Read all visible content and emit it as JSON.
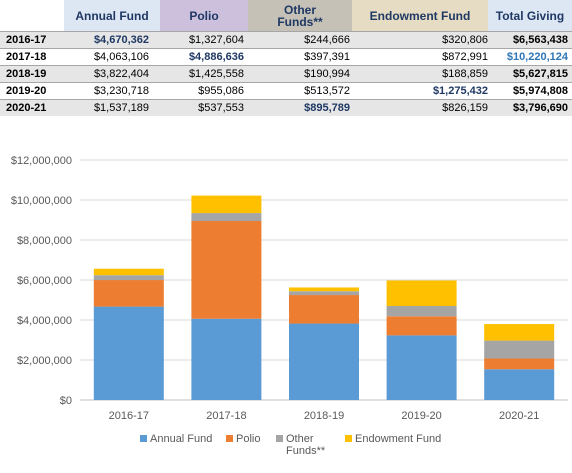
{
  "table": {
    "headers": {
      "annual": "Annual Fund",
      "polio": "Polio",
      "other_line1": "Other",
      "other_line2": "Funds**",
      "endowment": "Endowment Fund",
      "total": "Total Giving"
    },
    "header_colors": {
      "annual": "#dde7f4",
      "polio": "#ccc0dd",
      "other": "#c6c1b7",
      "endowment": "#e6dcc3",
      "total": "#dde7f4"
    },
    "rows": [
      {
        "year": "2016-17",
        "annual": "$4,670,362",
        "polio": "$1,327,604",
        "other": "$244,666",
        "endowment": "$320,806",
        "total": "$6,563,438",
        "hl": "annual",
        "total_hl": false
      },
      {
        "year": "2017-18",
        "annual": "$4,063,106",
        "polio": "$4,886,636",
        "other": "$397,391",
        "endowment": "$872,991",
        "total": "$10,220,124",
        "hl": "polio",
        "total_hl": true
      },
      {
        "year": "2018-19",
        "annual": "$3,822,404",
        "polio": "$1,425,558",
        "other": "$190,994",
        "endowment": "$188,859",
        "total": "$5,627,815",
        "hl": "",
        "total_hl": false
      },
      {
        "year": "2019-20",
        "annual": "$3,230,718",
        "polio": "$955,086",
        "other": "$513,572",
        "endowment": "$1,275,432",
        "total": "$5,974,808",
        "hl": "endowment",
        "total_hl": false
      },
      {
        "year": "2020-21",
        "annual": "$1,537,189",
        "polio": "$537,553",
        "other": "$895,789",
        "endowment": "$826,159",
        "total": "$3,796,690",
        "hl": "other",
        "total_hl": false
      }
    ]
  },
  "chart_data": {
    "type": "bar",
    "stacked": true,
    "title": "",
    "xlabel": "",
    "ylabel": "",
    "ylim": [
      0,
      12000000
    ],
    "yticks": [
      0,
      2000000,
      4000000,
      6000000,
      8000000,
      10000000,
      12000000
    ],
    "ytick_labels": [
      "$0",
      "$2,000,000",
      "$4,000,000",
      "$6,000,000",
      "$8,000,000",
      "$10,000,000",
      "$12,000,000"
    ],
    "grid": true,
    "legend_position": "bottom",
    "categories": [
      "2016-17",
      "2017-18",
      "2018-19",
      "2019-20",
      "2020-21"
    ],
    "series": [
      {
        "name": "Annual Fund",
        "color": "#5b9bd5",
        "values": [
          4670362,
          4063106,
          3822404,
          3230718,
          1537189
        ]
      },
      {
        "name": "Polio",
        "color": "#ed7d31",
        "values": [
          1327604,
          4886636,
          1425558,
          955086,
          537553
        ]
      },
      {
        "name": "Other Funds**",
        "color": "#a5a5a5",
        "values": [
          244666,
          397391,
          190994,
          513572,
          895789
        ]
      },
      {
        "name": "Endowment Fund",
        "color": "#ffc000",
        "values": [
          320806,
          872991,
          188859,
          1275432,
          826159
        ]
      }
    ],
    "legend_lines": [
      [
        "Annual Fund"
      ],
      [
        "Polio"
      ],
      [
        "Other",
        "Funds**"
      ],
      [
        "Endowment Fund"
      ]
    ]
  }
}
